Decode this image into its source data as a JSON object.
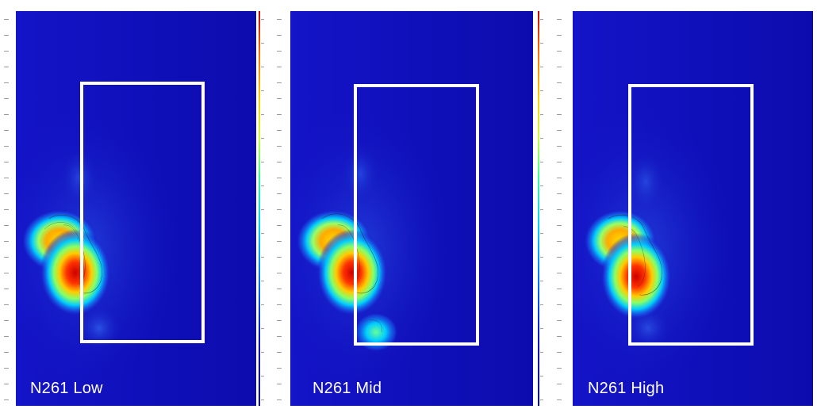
{
  "panels": [
    {
      "label": "N261 Low"
    },
    {
      "label": "N261 Mid"
    },
    {
      "label": "N261 High"
    }
  ],
  "colors": {
    "background": "#1010b8",
    "deep": "#0000a0",
    "highlight_box": "#ffffff",
    "hotspot": "#d40000",
    "label_text": "#ffffff"
  }
}
